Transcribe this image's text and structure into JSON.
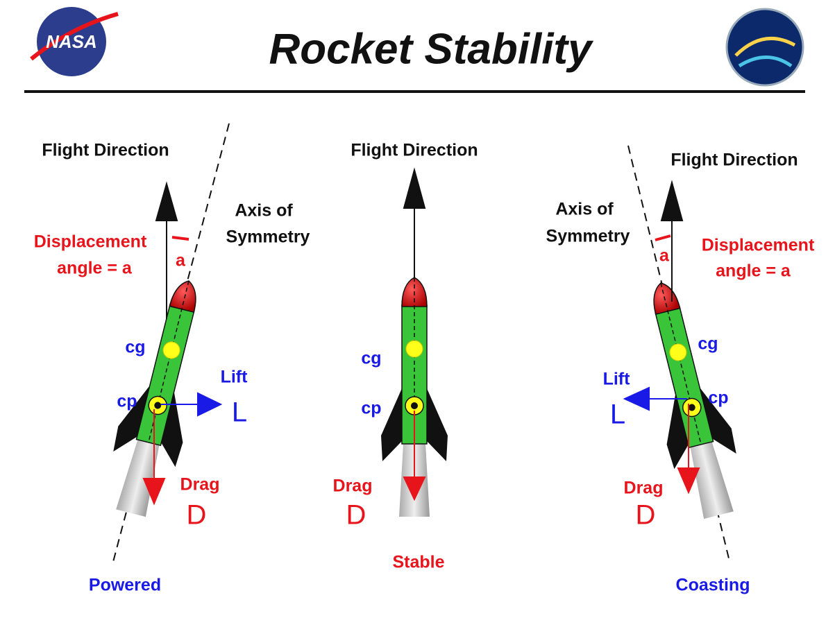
{
  "header": {
    "title": "Rocket Stability",
    "logo": "NASA"
  },
  "panels": [
    {
      "flight_direction": "Flight Direction",
      "axis_label": [
        "Axis of",
        "Symmetry"
      ],
      "displacement_label": [
        "Displacement",
        "angle = a"
      ],
      "angle": "a",
      "cg": "cg",
      "cp": "cp",
      "lift": "Lift",
      "lift_symbol": "L",
      "drag": "Drag",
      "drag_symbol": "D",
      "caption": "Powered"
    },
    {
      "flight_direction": "Flight Direction",
      "cg": "cg",
      "cp": "cp",
      "drag": "Drag",
      "drag_symbol": "D",
      "caption": "Stable"
    },
    {
      "flight_direction": "Flight Direction",
      "axis_label": [
        "Axis of",
        "Symmetry"
      ],
      "displacement_label": [
        "Displacement",
        "angle = a"
      ],
      "angle": "a",
      "cg": "cg",
      "cp": "cp",
      "lift": "Lift",
      "lift_symbol": "L",
      "drag": "Drag",
      "drag_symbol": "D",
      "caption": "Coasting"
    }
  ]
}
